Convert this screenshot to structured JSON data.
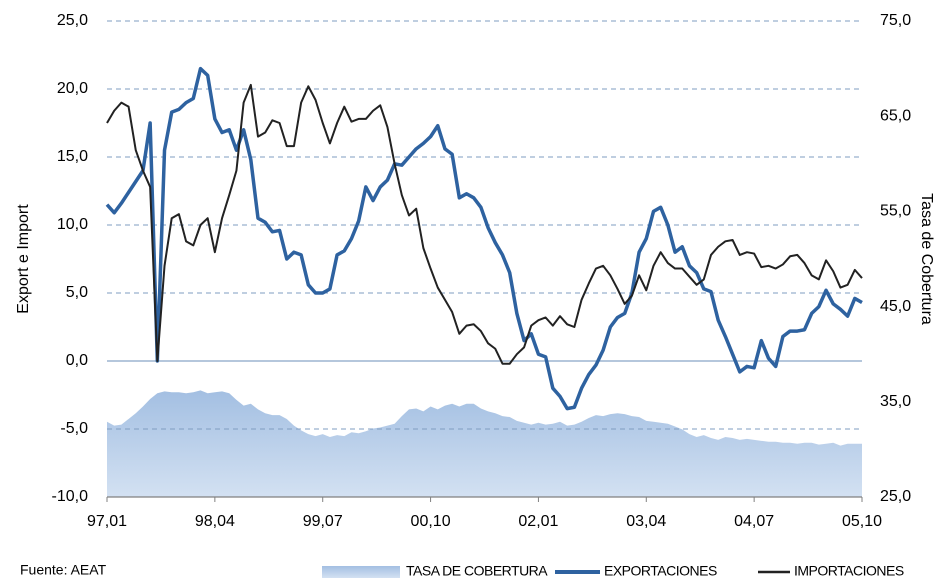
{
  "chart_data": {
    "type": "line",
    "y_label": "Export e Import",
    "y2_label": "Tasa de Cobertura",
    "source": "Fuente: AEAT",
    "legend": "bottom-right",
    "grid": true,
    "categories": [
      "97,01",
      null,
      null,
      null,
      null,
      null,
      null,
      null,
      null,
      null,
      null,
      null,
      null,
      null,
      null,
      "98,04",
      null,
      null,
      null,
      null,
      null,
      null,
      null,
      null,
      null,
      null,
      null,
      null,
      null,
      null,
      "99,07",
      null,
      null,
      null,
      null,
      null,
      null,
      null,
      null,
      null,
      null,
      null,
      null,
      null,
      null,
      "00,10",
      null,
      null,
      null,
      null,
      null,
      null,
      null,
      null,
      null,
      null,
      null,
      null,
      null,
      null,
      "02,01",
      null,
      null,
      null,
      null,
      null,
      null,
      null,
      null,
      null,
      null,
      null,
      null,
      null,
      null,
      "03,04",
      null,
      null,
      null,
      null,
      null,
      null,
      null,
      null,
      null,
      null,
      null,
      null,
      null,
      null,
      "04,07",
      null,
      null,
      null,
      null,
      null,
      null,
      null,
      null,
      null,
      null,
      null,
      null,
      null,
      null,
      "05,10"
    ],
    "ylim": [
      -10,
      25
    ],
    "yticks": [
      {
        "value": -10,
        "label": "-10,0"
      },
      {
        "value": -5,
        "label": "-5,0"
      },
      {
        "value": 0,
        "label": "0,0"
      },
      {
        "value": 5,
        "label": "5,0"
      },
      {
        "value": 10,
        "label": "10,0"
      },
      {
        "value": 15,
        "label": "15,0"
      },
      {
        "value": 20,
        "label": "20,0"
      },
      {
        "value": 25,
        "label": "25,0"
      }
    ],
    "y2lim": [
      25,
      75
    ],
    "y2ticks": [
      {
        "value": 25,
        "label": "25,0"
      },
      {
        "value": 35,
        "label": "35,0"
      },
      {
        "value": 45,
        "label": "45,0"
      },
      {
        "value": 55,
        "label": "55,0"
      },
      {
        "value": 65,
        "label": "65,0"
      },
      {
        "value": 75,
        "label": "75,0"
      }
    ],
    "series": [
      {
        "name": "TASA DE COBERTURA",
        "color": "#b4cbe6",
        "style": "area",
        "axis": "y2",
        "values": [
          32.9,
          32.5,
          32.6,
          33.2,
          33.8,
          34.5,
          35.3,
          35.9,
          36.1,
          36.0,
          36.0,
          35.9,
          36.0,
          36.2,
          35.9,
          36.0,
          36.1,
          35.9,
          35.2,
          34.6,
          34.8,
          34.2,
          33.8,
          33.6,
          33.6,
          33.2,
          32.5,
          32.0,
          31.6,
          31.4,
          31.6,
          31.3,
          31.5,
          31.4,
          31.8,
          31.7,
          31.9,
          32.2,
          32.3,
          32.5,
          32.7,
          33.5,
          34.2,
          34.3,
          34.0,
          34.5,
          34.2,
          34.6,
          34.8,
          34.5,
          34.8,
          34.8,
          34.3,
          34.0,
          33.8,
          33.5,
          33.4,
          33.0,
          32.8,
          32.6,
          32.8,
          32.6,
          32.7,
          32.9,
          32.5,
          32.6,
          32.9,
          33.3,
          33.6,
          33.5,
          33.7,
          33.8,
          33.7,
          33.5,
          33.4,
          33.0,
          32.9,
          32.8,
          32.7,
          32.4,
          32.1,
          31.6,
          31.3,
          31.5,
          31.2,
          31.0,
          31.3,
          31.2,
          31.0,
          31.1,
          31.0,
          30.9,
          30.8,
          30.8,
          30.7,
          30.7,
          30.6,
          30.7,
          30.7,
          30.5,
          30.6,
          30.7,
          30.4,
          30.6,
          30.6,
          30.6
        ]
      },
      {
        "name": "EXPORTACIONES",
        "color": "#2e62a0",
        "style": "line",
        "values": [
          11.5,
          10.9,
          11.6,
          12.4,
          13.2,
          14.0,
          17.5,
          0.0,
          15.5,
          18.3,
          18.5,
          19.0,
          19.3,
          21.5,
          21.0,
          17.8,
          16.8,
          17.0,
          15.5,
          17.0,
          14.8,
          10.5,
          10.2,
          9.5,
          9.6,
          7.5,
          8.0,
          7.8,
          5.6,
          5.0,
          5.0,
          5.3,
          7.8,
          8.1,
          9.0,
          10.3,
          12.8,
          11.8,
          12.8,
          13.3,
          14.5,
          14.4,
          15.0,
          15.6,
          16.0,
          16.5,
          17.3,
          15.6,
          15.2,
          12.0,
          12.3,
          12.0,
          11.3,
          9.8,
          8.7,
          7.8,
          6.5,
          3.5,
          1.5,
          2.0,
          0.5,
          0.3,
          -2.0,
          -2.6,
          -3.5,
          -3.4,
          -2.0,
          -1.0,
          -0.3,
          0.8,
          2.5,
          3.2,
          3.5,
          5.0,
          8.0,
          9.0,
          11.0,
          11.3,
          10.0,
          8.0,
          8.4,
          7.0,
          6.5,
          5.3,
          5.1,
          3.0,
          1.8,
          0.5,
          -0.8,
          -0.4,
          -0.5,
          1.5,
          0.2,
          -0.4,
          1.8,
          2.2,
          2.2,
          2.3,
          3.5,
          4.0,
          5.2,
          4.2,
          3.8,
          3.3,
          4.6,
          4.3
        ]
      },
      {
        "name": "IMPORTACIONES",
        "color": "#222222",
        "style": "line",
        "values": [
          17.5,
          18.4,
          19.0,
          18.7,
          15.5,
          14.0,
          12.8,
          0.0,
          7.0,
          10.5,
          10.8,
          8.8,
          8.5,
          10.0,
          10.5,
          8.0,
          10.5,
          12.2,
          14.0,
          19.0,
          20.3,
          16.5,
          16.8,
          17.7,
          17.5,
          15.8,
          15.8,
          19.0,
          20.2,
          19.2,
          17.5,
          16.0,
          17.5,
          18.7,
          17.6,
          17.8,
          17.8,
          18.4,
          18.8,
          17.2,
          14.5,
          12.2,
          10.7,
          11.2,
          8.3,
          6.8,
          5.4,
          4.5,
          3.6,
          2.0,
          2.6,
          2.7,
          2.2,
          1.3,
          0.9,
          -0.2,
          -0.2,
          0.5,
          1.0,
          2.6,
          3.0,
          3.2,
          2.6,
          3.3,
          2.7,
          2.5,
          4.5,
          5.7,
          6.8,
          7.0,
          6.3,
          5.3,
          4.2,
          4.8,
          6.3,
          5.2,
          7.0,
          8.0,
          7.2,
          6.8,
          6.8,
          6.2,
          5.6,
          6.0,
          7.8,
          8.4,
          8.8,
          8.9,
          7.8,
          8.0,
          7.9,
          6.9,
          7.0,
          6.8,
          7.1,
          7.7,
          7.8,
          7.2,
          6.3,
          6.0,
          7.4,
          6.6,
          5.4,
          5.6,
          6.7,
          6.1
        ]
      }
    ]
  }
}
